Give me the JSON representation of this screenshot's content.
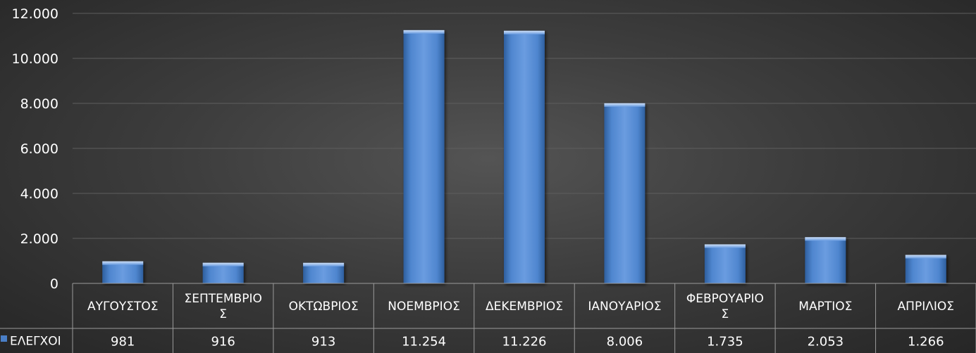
{
  "chart_data": {
    "type": "bar",
    "categories": [
      "ΑΥΓΟΥΣΤΟΣ",
      "ΣΕΠΤΕΜΒΡΙΟΣ",
      "ΟΚΤΩΒΡΙΟΣ",
      "ΝΟΕΜΒΡΙΟΣ",
      "ΔΕΚΕΜΒΡΙΟΣ",
      "ΙΑΝΟΥΑΡΙΟΣ",
      "ΦΕΒΡΟΥΑΡΙΟΣ",
      "ΜΑΡΤΙΟΣ",
      "ΑΠΡΙΛΙΟΣ"
    ],
    "category_label_lines": [
      [
        "ΑΥΓΟΥΣΤΟΣ"
      ],
      [
        "ΣΕΠΤΕΜΒΡΙΟ",
        "Σ"
      ],
      [
        "ΟΚΤΩΒΡΙΟΣ"
      ],
      [
        "ΝΟΕΜΒΡΙΟΣ"
      ],
      [
        "ΔΕΚΕΜΒΡΙΟΣ"
      ],
      [
        "ΙΑΝΟΥΑΡΙΟΣ"
      ],
      [
        "ΦΕΒΡΟΥΑΡΙΟ",
        "Σ"
      ],
      [
        "ΜΑΡΤΙΟΣ"
      ],
      [
        "ΑΠΡΙΛΙΟΣ"
      ]
    ],
    "series": [
      {
        "name": "ΕΛΕΓΧΟΙ",
        "values": [
          981,
          916,
          913,
          11254,
          11226,
          8006,
          1735,
          2053,
          1266
        ],
        "value_labels": [
          "981",
          "916",
          "913",
          "11.254",
          "11.226",
          "8.006",
          "1.735",
          "2.053",
          "1.266"
        ],
        "color": "#4a7fc7"
      }
    ],
    "ylim": [
      0,
      12000
    ],
    "yticks": [
      0,
      2000,
      4000,
      6000,
      8000,
      10000,
      12000
    ],
    "ytick_labels": [
      "0",
      "2.000",
      "4.000",
      "6.000",
      "8.000",
      "10.000",
      "12.000"
    ],
    "grid": true,
    "data_table": true,
    "legend": "data-table-left"
  },
  "colors": {
    "background": "#3d3d3d",
    "gridline": "#5e5e5e",
    "bar": "#4a7fc7",
    "table_border": "#9a9a9a",
    "text": "#ffffff"
  }
}
